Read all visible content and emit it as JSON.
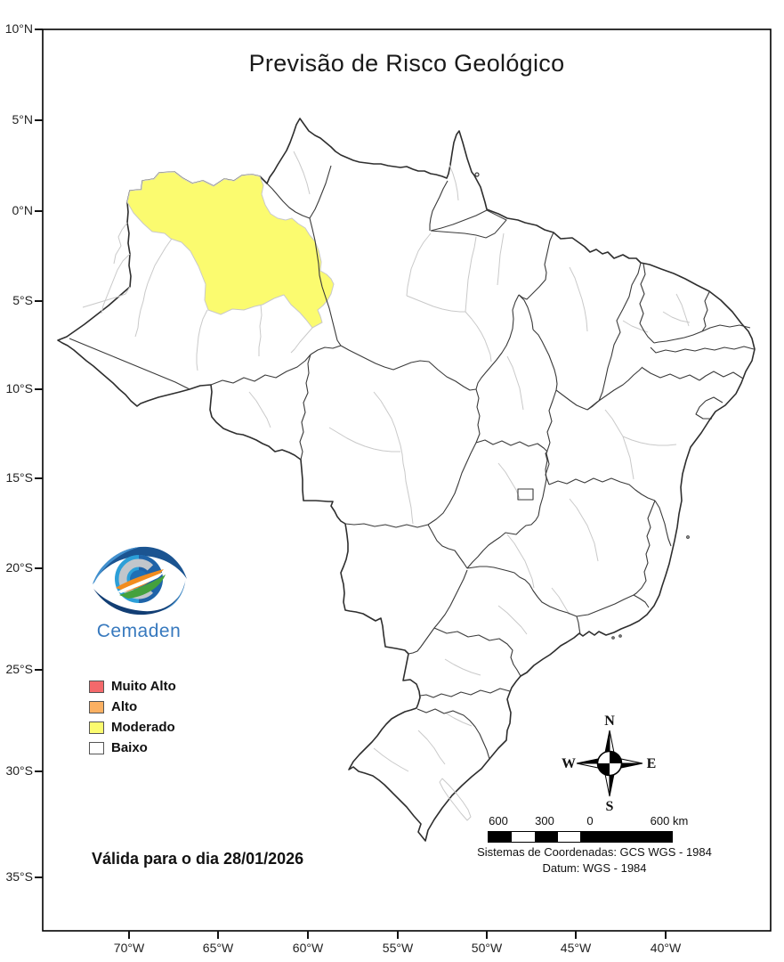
{
  "title": "Previsão de Risco Geológico",
  "map": {
    "y_axis": {
      "labels": [
        "10°N",
        "5°N",
        "0°N",
        "5°S",
        "10°S",
        "15°S",
        "20°S",
        "25°S",
        "30°S",
        "35°S"
      ]
    },
    "x_axis": {
      "labels": [
        "70°W",
        "65°W",
        "60°W",
        "55°W",
        "50°W",
        "45°W",
        "40°W"
      ]
    },
    "highlighted_region": {
      "risk_level": "Moderado",
      "color": "#FBFB6F"
    }
  },
  "legend": {
    "items": [
      {
        "label": "Muito Alto",
        "color": "#F4696B"
      },
      {
        "label": "Alto",
        "color": "#FBB062"
      },
      {
        "label": "Moderado",
        "color": "#FBFB6F"
      },
      {
        "label": "Baixo",
        "color": "#FFFFFF"
      }
    ]
  },
  "validity_text": "Válida para o dia 28/01/2026",
  "logo": {
    "text": "Cemaden",
    "brand_color": "#3779BE"
  },
  "compass": {
    "north": "N",
    "south": "S",
    "east": "E",
    "west": "W"
  },
  "scale_bar": {
    "labels": [
      "600",
      "300",
      "0",
      "600 km"
    ]
  },
  "coordinate_system": {
    "line1": "Sistemas de Coordenadas: GCS WGS - 1984",
    "line2": "Datum: WGS - 1984"
  }
}
